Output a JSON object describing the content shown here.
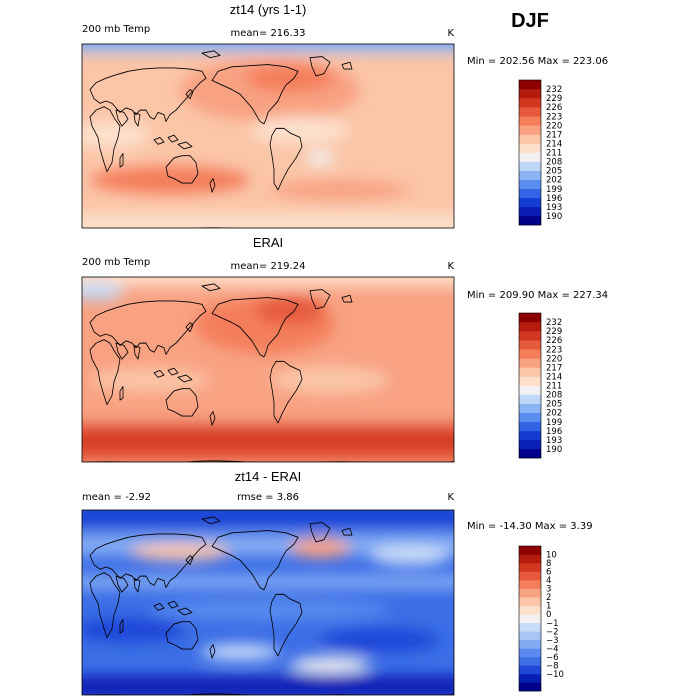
{
  "season": "DJF",
  "colors": {
    "temp_scale": [
      "#00008b",
      "#0a1eb4",
      "#143cd2",
      "#3264e6",
      "#5a8cf0",
      "#8cb4f5",
      "#bed7f8",
      "#f2f0f0",
      "#fde0cc",
      "#fbc5a8",
      "#f8a282",
      "#f47e5c",
      "#e65a3c",
      "#d23722",
      "#b41c0e",
      "#8c0000"
    ],
    "diff_scale": [
      "#00008b",
      "#0a1eb4",
      "#1e46d7",
      "#3c6ee6",
      "#5a8cf0",
      "#82aaf3",
      "#a7c6f6",
      "#c8dcf8",
      "#f2f0f0",
      "#fde0cc",
      "#fbc5a8",
      "#f8a282",
      "#f47e5c",
      "#e65a3c",
      "#d23722",
      "#b41c0e",
      "#8c0000"
    ],
    "coastline": "#000000"
  },
  "chart_data": [
    {
      "type": "heatmap",
      "title": "zt14 (yrs 1-1)",
      "variable": "200 mb Temp",
      "mean_text": "mean= 216.33",
      "units": "K",
      "minmax": "Min = 202.56 Max = 223.06",
      "min": 202.56,
      "max": 223.06,
      "mean": 216.33,
      "colorbar_levels": [
        "232",
        "229",
        "226",
        "223",
        "220",
        "217",
        "214",
        "211",
        "208",
        "205",
        "202",
        "199",
        "196",
        "193",
        "190"
      ]
    },
    {
      "type": "heatmap",
      "title": "ERAI",
      "variable": "200 mb Temp",
      "mean_text": "mean= 219.24",
      "units": "K",
      "minmax": "Min = 209.90 Max = 227.34",
      "min": 209.9,
      "max": 227.34,
      "mean": 219.24,
      "colorbar_levels": [
        "232",
        "229",
        "226",
        "223",
        "220",
        "217",
        "214",
        "211",
        "208",
        "205",
        "202",
        "199",
        "196",
        "193",
        "190"
      ]
    },
    {
      "type": "heatmap",
      "title": "zt14 - ERAI",
      "mean_text": "mean =   -2.92",
      "rmse_text": "rmse =    3.86",
      "units": "K",
      "minmax": "Min = -14.30 Max =   3.39",
      "min": -14.3,
      "max": 3.39,
      "mean": -2.92,
      "rmse": 3.86,
      "colorbar_levels": [
        "10",
        "8",
        "6",
        "4",
        "3",
        "2",
        "1",
        "0",
        "−1",
        "−2",
        "−3",
        "−4",
        "−6",
        "−8",
        "−10"
      ]
    }
  ]
}
